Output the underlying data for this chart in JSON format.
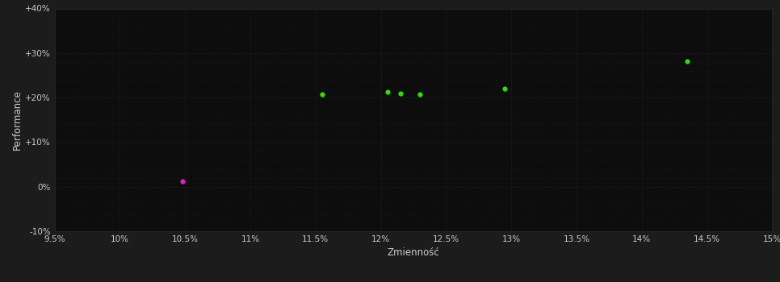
{
  "background_color": "#1c1c1c",
  "plot_bg_color": "#0d0d0d",
  "grid_color": "#2a2a2a",
  "text_color": "#cccccc",
  "xlabel": "Zmienność",
  "ylabel": "Performance",
  "xlim": [
    0.095,
    0.15
  ],
  "ylim": [
    -0.1,
    0.4
  ],
  "xticks": [
    0.095,
    0.1,
    0.105,
    0.11,
    0.115,
    0.12,
    0.125,
    0.13,
    0.135,
    0.14,
    0.145,
    0.15
  ],
  "yticks": [
    -0.1,
    0.0,
    0.1,
    0.2,
    0.3,
    0.4
  ],
  "ytick_labels": [
    "-10%",
    "0%",
    "+10%",
    "+20%",
    "+30%",
    "+40%"
  ],
  "xtick_labels": [
    "9.5%",
    "10%",
    "10.5%",
    "11%",
    "11.5%",
    "12%",
    "12.5%",
    "13%",
    "13.5%",
    "14%",
    "14.5%",
    "15%"
  ],
  "green_points": [
    [
      0.1155,
      0.208
    ],
    [
      0.1205,
      0.213
    ],
    [
      0.1215,
      0.21
    ],
    [
      0.123,
      0.208
    ],
    [
      0.1295,
      0.22
    ],
    [
      0.1435,
      0.282
    ]
  ],
  "magenta_points": [
    [
      0.1048,
      0.012
    ]
  ],
  "point_size": 12,
  "green_color": "#33dd00",
  "magenta_color": "#dd22cc"
}
